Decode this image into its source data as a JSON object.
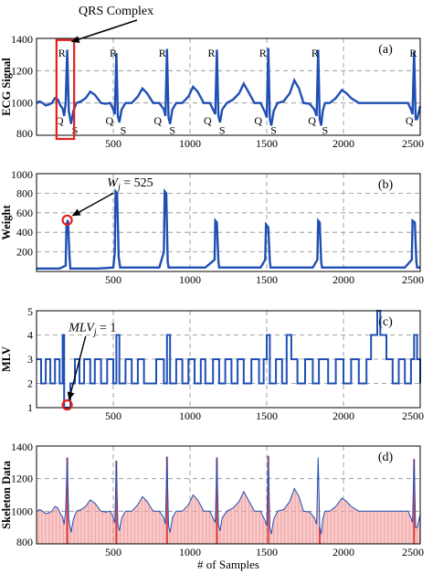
{
  "figure": {
    "qrs_callout": "QRS Complex",
    "weight_callout": {
      "prefix": "W",
      "sub": "j",
      "suffix": " = 525"
    },
    "mlv_callout": {
      "prefix": "MLV",
      "sub": "j",
      "suffix": " = 1"
    },
    "xlabel": "# of Samples"
  },
  "colors": {
    "signal": "#1f4fb4",
    "skeleton_fill": "#f2a0a0",
    "skeleton_line": "#e04040",
    "highlight": "#e02020"
  },
  "chart_data": [
    {
      "id": "ecg",
      "type": "line",
      "panel_label": "(a)",
      "ylabel": "ECG Signal",
      "xlim": [
        0,
        2500
      ],
      "ylim": [
        800,
        1400
      ],
      "xticks": [
        500,
        1000,
        1500,
        2000,
        2500
      ],
      "xtick_labels": [
        "500",
        "1000",
        "1500",
        "2000",
        "2500"
      ],
      "yticks": [
        800,
        1000,
        1200,
        1400
      ],
      "ytick_labels": [
        "800",
        "1000",
        "1200",
        "1400"
      ],
      "grid": true,
      "series": [
        {
          "x": [
            0,
            20,
            40,
            60,
            80,
            100,
            120,
            140,
            155,
            170,
            180,
            190,
            200,
            210,
            225,
            240,
            260,
            290,
            320,
            350,
            380,
            420,
            450,
            480,
            500,
            510,
            520,
            530,
            540,
            555,
            580,
            620,
            660,
            690,
            720,
            760,
            800,
            830,
            840,
            850,
            860,
            870,
            885,
            910,
            950,
            990,
            1020,
            1050,
            1090,
            1130,
            1155,
            1165,
            1175,
            1185,
            1195,
            1210,
            1240,
            1280,
            1320,
            1350,
            1380,
            1420,
            1460,
            1490,
            1500,
            1510,
            1520,
            1530,
            1545,
            1570,
            1610,
            1650,
            1680,
            1710,
            1740,
            1780,
            1810,
            1825,
            1835,
            1845,
            1855,
            1865,
            1880,
            1910,
            1950,
            1990,
            2020,
            2050,
            2100,
            2200,
            2300,
            2380,
            2420,
            2440,
            2450,
            2460,
            2470,
            2480,
            2500
          ],
          "y": [
            1000,
            1010,
            1000,
            985,
            990,
            1000,
            1030,
            1020,
            985,
            965,
            920,
            1000,
            1330,
            950,
            870,
            950,
            1000,
            1010,
            1030,
            1070,
            1050,
            1000,
            995,
            1000,
            960,
            930,
            1310,
            920,
            880,
            960,
            1000,
            1000,
            1040,
            1090,
            1060,
            1000,
            1000,
            960,
            920,
            1335,
            910,
            870,
            960,
            1000,
            1000,
            1040,
            1100,
            1070,
            1000,
            1000,
            950,
            930,
            1330,
            920,
            880,
            960,
            1000,
            1020,
            1060,
            1120,
            1070,
            1000,
            1000,
            940,
            910,
            1340,
            900,
            860,
            950,
            1000,
            1010,
            1060,
            1140,
            1090,
            1000,
            995,
            960,
            920,
            1330,
            900,
            860,
            950,
            1000,
            1000,
            1030,
            1080,
            1060,
            1030,
            1000,
            1000,
            1000,
            1000,
            1000,
            960,
            930,
            1320,
            900,
            900,
            980
          ]
        }
      ]
    },
    {
      "id": "weight",
      "type": "line",
      "panel_label": "(b)",
      "ylabel": "Weight",
      "xlim": [
        0,
        2500
      ],
      "ylim": [
        0,
        1000
      ],
      "xticks": [
        500,
        1000,
        1500,
        2000,
        2500
      ],
      "xtick_labels": [
        "500",
        "1000",
        "1500",
        "2000",
        "2500"
      ],
      "yticks": [
        200,
        400,
        600,
        800,
        1000
      ],
      "ytick_labels": [
        "200",
        "400",
        "600",
        "800",
        "1000"
      ],
      "grid": true,
      "highlight_point": {
        "x": 200,
        "y": 525
      },
      "series": [
        {
          "x": [
            0,
            150,
            190,
            195,
            205,
            215,
            220,
            400,
            500,
            510,
            515,
            525,
            535,
            545,
            800,
            830,
            835,
            845,
            855,
            860,
            1100,
            1160,
            1165,
            1175,
            1185,
            1190,
            1460,
            1490,
            1495,
            1510,
            1520,
            1525,
            1800,
            1830,
            1835,
            1845,
            1855,
            1860,
            2400,
            2445,
            2450,
            2465,
            2475,
            2480,
            2500
          ],
          "y": [
            30,
            30,
            60,
            480,
            525,
            150,
            30,
            30,
            40,
            200,
            820,
            800,
            150,
            40,
            40,
            200,
            820,
            800,
            100,
            40,
            40,
            120,
            520,
            500,
            100,
            40,
            40,
            120,
            480,
            450,
            100,
            40,
            40,
            120,
            520,
            500,
            100,
            40,
            40,
            120,
            520,
            500,
            100,
            40,
            40
          ]
        }
      ]
    },
    {
      "id": "mlv",
      "type": "line",
      "panel_label": "(c)",
      "ylabel": "MLV",
      "xlim": [
        0,
        2500
      ],
      "ylim": [
        1,
        5
      ],
      "xticks": [
        500,
        1000,
        1500,
        2000,
        2500
      ],
      "xtick_labels": [
        "500",
        "1000",
        "1500",
        "2000",
        "2500"
      ],
      "yticks": [
        1,
        2,
        3,
        4,
        5
      ],
      "ytick_labels": [
        "1",
        "2",
        "3",
        "4",
        "5"
      ],
      "grid": true,
      "highlight_point": {
        "x": 200,
        "y": 1
      },
      "series": [
        {
          "x": [
            0,
            30,
            60,
            90,
            120,
            150,
            170,
            180,
            200,
            220,
            250,
            280,
            310,
            350,
            380,
            420,
            460,
            500,
            520,
            540,
            580,
            620,
            660,
            700,
            740,
            780,
            830,
            850,
            870,
            910,
            950,
            990,
            1030,
            1070,
            1100,
            1150,
            1170,
            1190,
            1230,
            1270,
            1310,
            1350,
            1400,
            1450,
            1480,
            1500,
            1520,
            1560,
            1600,
            1630,
            1660,
            1700,
            1750,
            1800,
            1840,
            1860,
            1900,
            1950,
            2000,
            2050,
            2100,
            2150,
            2180,
            2200,
            2220,
            2240,
            2280,
            2320,
            2360,
            2400,
            2440,
            2460,
            2480,
            2500
          ],
          "y": [
            3,
            2,
            3,
            2,
            3,
            2,
            4,
            1,
            1,
            2,
            3,
            2,
            3,
            2,
            3,
            2,
            3,
            2,
            4,
            2,
            3,
            2,
            3,
            2,
            2,
            3,
            2,
            4,
            2,
            3,
            2,
            3,
            2,
            3,
            2,
            3,
            3,
            2,
            3,
            2,
            3,
            2,
            3,
            2,
            3,
            4,
            2,
            3,
            2,
            4,
            3,
            2,
            3,
            2,
            3,
            3,
            2,
            3,
            2,
            3,
            2,
            3,
            4,
            4,
            5,
            4,
            3,
            2,
            3,
            2,
            3,
            4,
            3,
            2
          ]
        }
      ]
    },
    {
      "id": "skeleton",
      "type": "line",
      "panel_label": "(d)",
      "ylabel": "Skeleton Data",
      "xlabel": "# of Samples",
      "xlim": [
        0,
        2500
      ],
      "ylim": [
        800,
        1400
      ],
      "xticks": [
        500,
        1000,
        1500,
        2000,
        2500
      ],
      "xtick_labels": [
        "500",
        "1000",
        "1500",
        "2000",
        "2500"
      ],
      "yticks": [
        800,
        1000,
        1200,
        1400
      ],
      "ytick_labels": [
        "800",
        "1000",
        "1200",
        "1400"
      ],
      "grid": true,
      "series_ref": "ecg"
    }
  ],
  "wave_labels": [
    {
      "text": "R",
      "x": 165,
      "y": 1310
    },
    {
      "text": "Q",
      "x": 150,
      "y": 890
    },
    {
      "text": "S",
      "x": 250,
      "y": 830
    },
    {
      "text": "R",
      "x": 500,
      "y": 1310
    },
    {
      "text": "Q",
      "x": 475,
      "y": 890
    },
    {
      "text": "S",
      "x": 565,
      "y": 830
    },
    {
      "text": "R",
      "x": 820,
      "y": 1310
    },
    {
      "text": "Q",
      "x": 790,
      "y": 890
    },
    {
      "text": "S",
      "x": 885,
      "y": 830
    },
    {
      "text": "R",
      "x": 1140,
      "y": 1310
    },
    {
      "text": "Q",
      "x": 1115,
      "y": 890
    },
    {
      "text": "S",
      "x": 1210,
      "y": 830
    },
    {
      "text": "R",
      "x": 1475,
      "y": 1310
    },
    {
      "text": "Q",
      "x": 1445,
      "y": 890
    },
    {
      "text": "S",
      "x": 1545,
      "y": 830
    },
    {
      "text": "R",
      "x": 1815,
      "y": 1310
    },
    {
      "text": "Q",
      "x": 1795,
      "y": 890
    },
    {
      "text": "S",
      "x": 1880,
      "y": 830
    },
    {
      "text": "R",
      "x": 2455,
      "y": 1310
    },
    {
      "text": "Q",
      "x": 2430,
      "y": 890
    }
  ]
}
